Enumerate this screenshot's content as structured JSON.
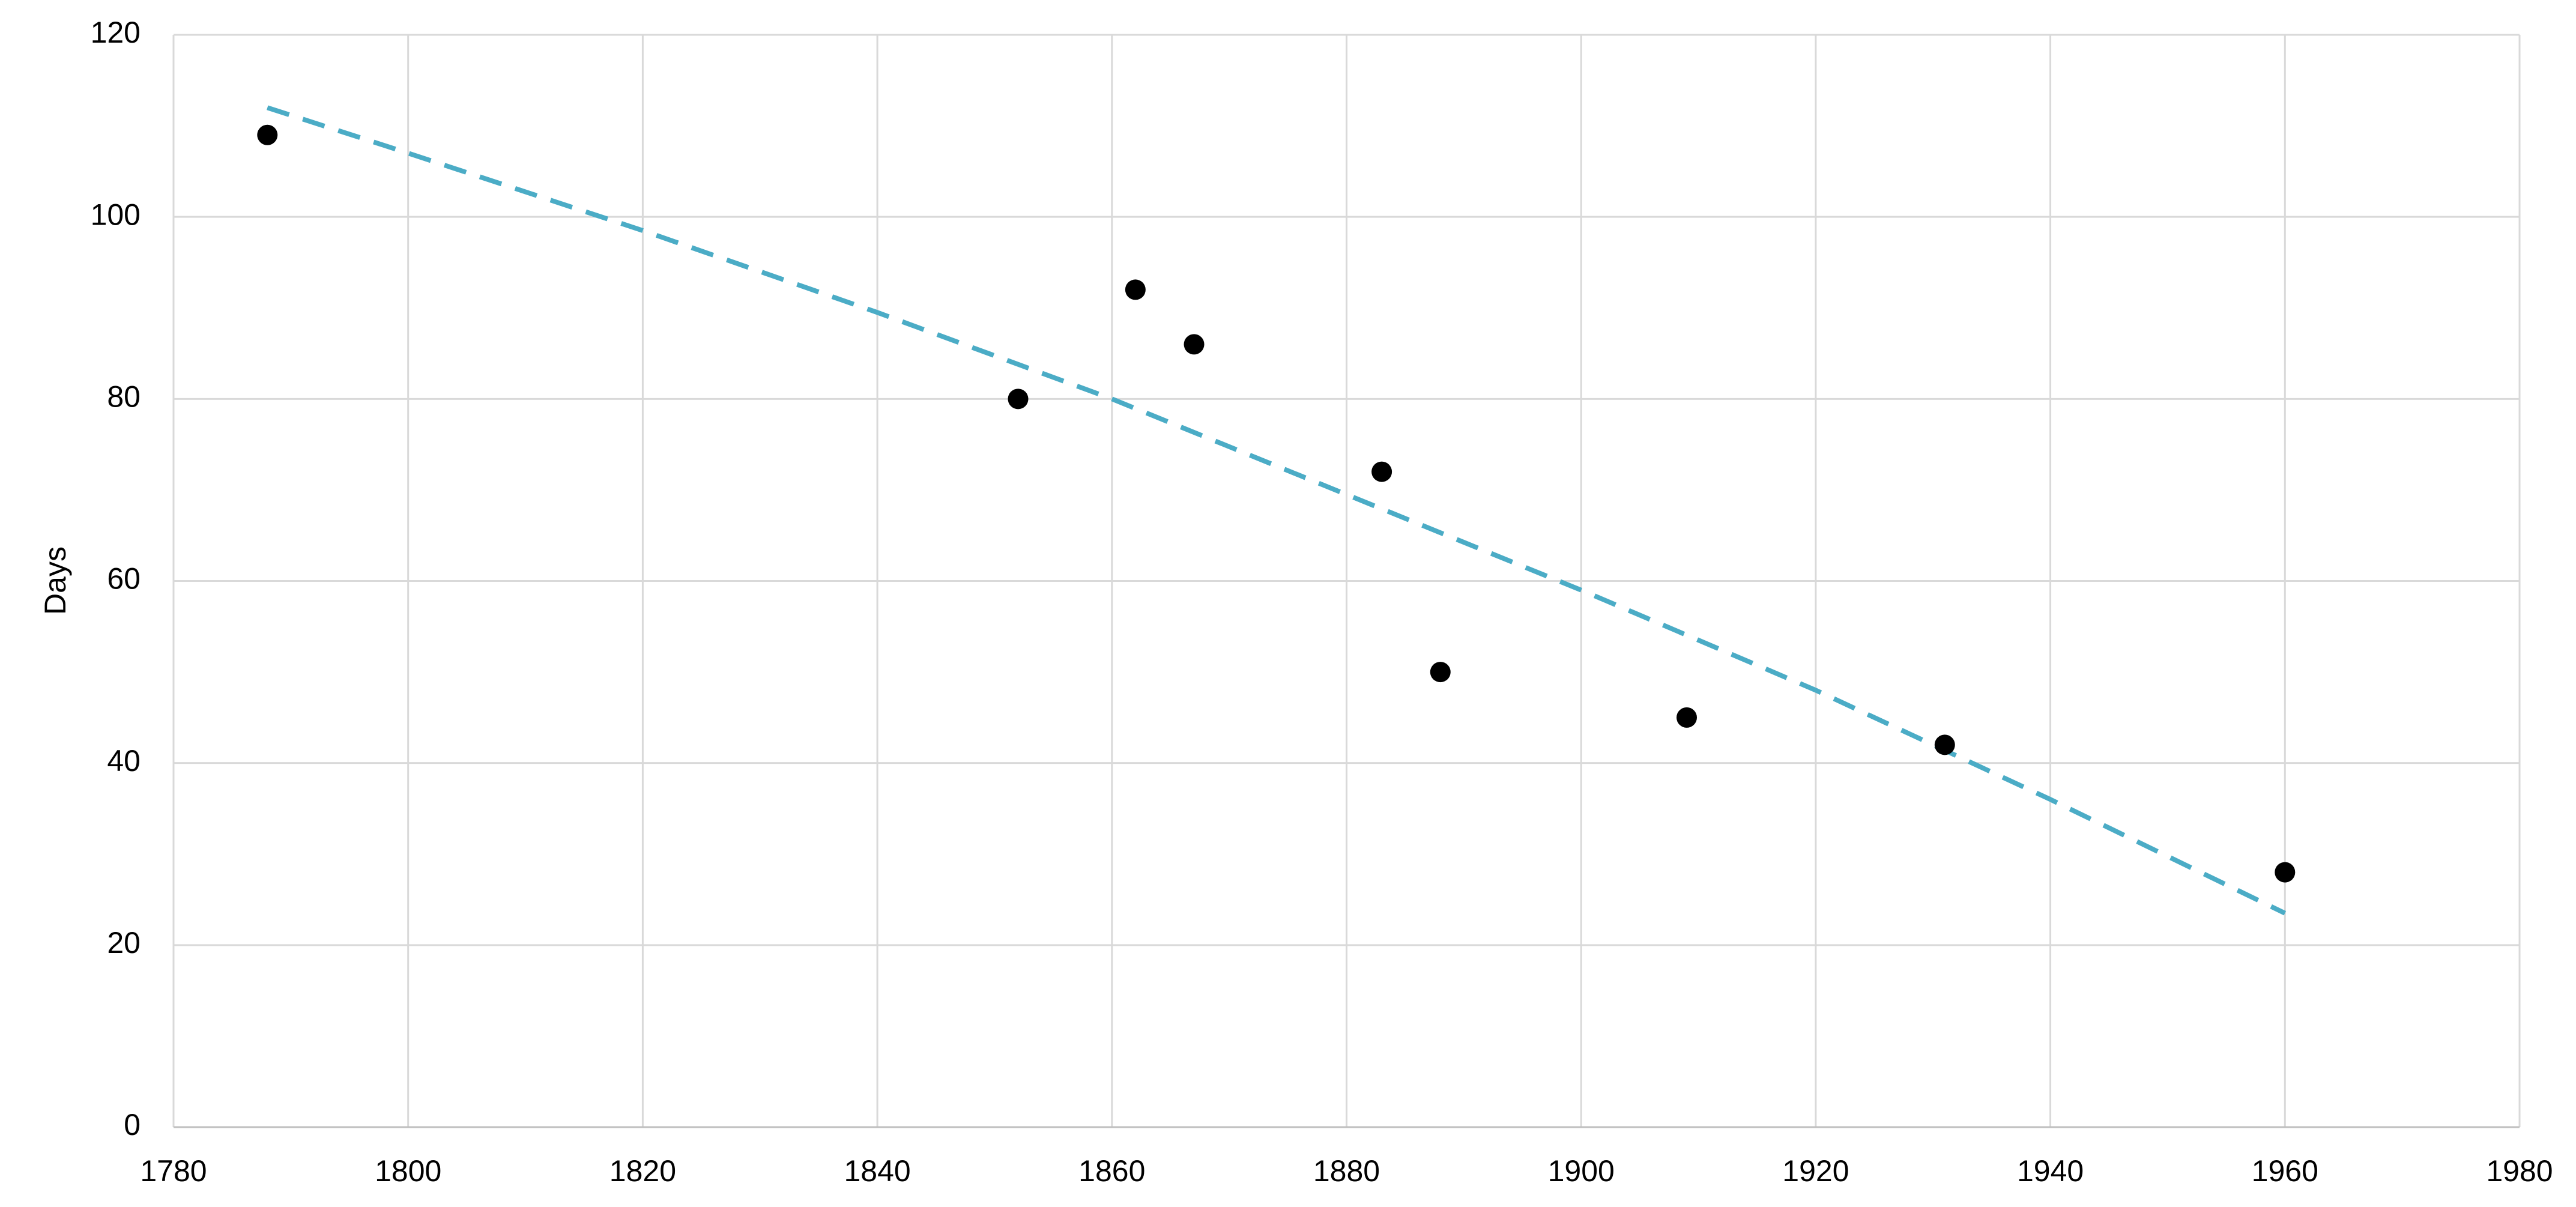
{
  "chart_data": {
    "type": "scatter",
    "y_label": "Days",
    "x": [
      1788,
      1852,
      1862,
      1867,
      1883,
      1888,
      1909,
      1931,
      1960
    ],
    "values": [
      109,
      80,
      92,
      86,
      72,
      50,
      45,
      42,
      28
    ],
    "color": "#000000",
    "trendline": {
      "type": "line",
      "color": "#4bacc6",
      "dashed": true,
      "x": [
        1788,
        1800,
        1820,
        1840,
        1860,
        1880,
        1900,
        1920,
        1940,
        1960
      ],
      "values": [
        112,
        107,
        98.5,
        89.5,
        80,
        69.5,
        59,
        48,
        36,
        23.5
      ]
    },
    "xlim": [
      1780,
      1980
    ],
    "xticks": [
      1780,
      1800,
      1820,
      1840,
      1860,
      1880,
      1900,
      1920,
      1940,
      1960,
      1980
    ],
    "ylim": [
      0,
      120
    ],
    "yticks": [
      0,
      20,
      40,
      60,
      80,
      100,
      120
    ],
    "grid": true
  }
}
